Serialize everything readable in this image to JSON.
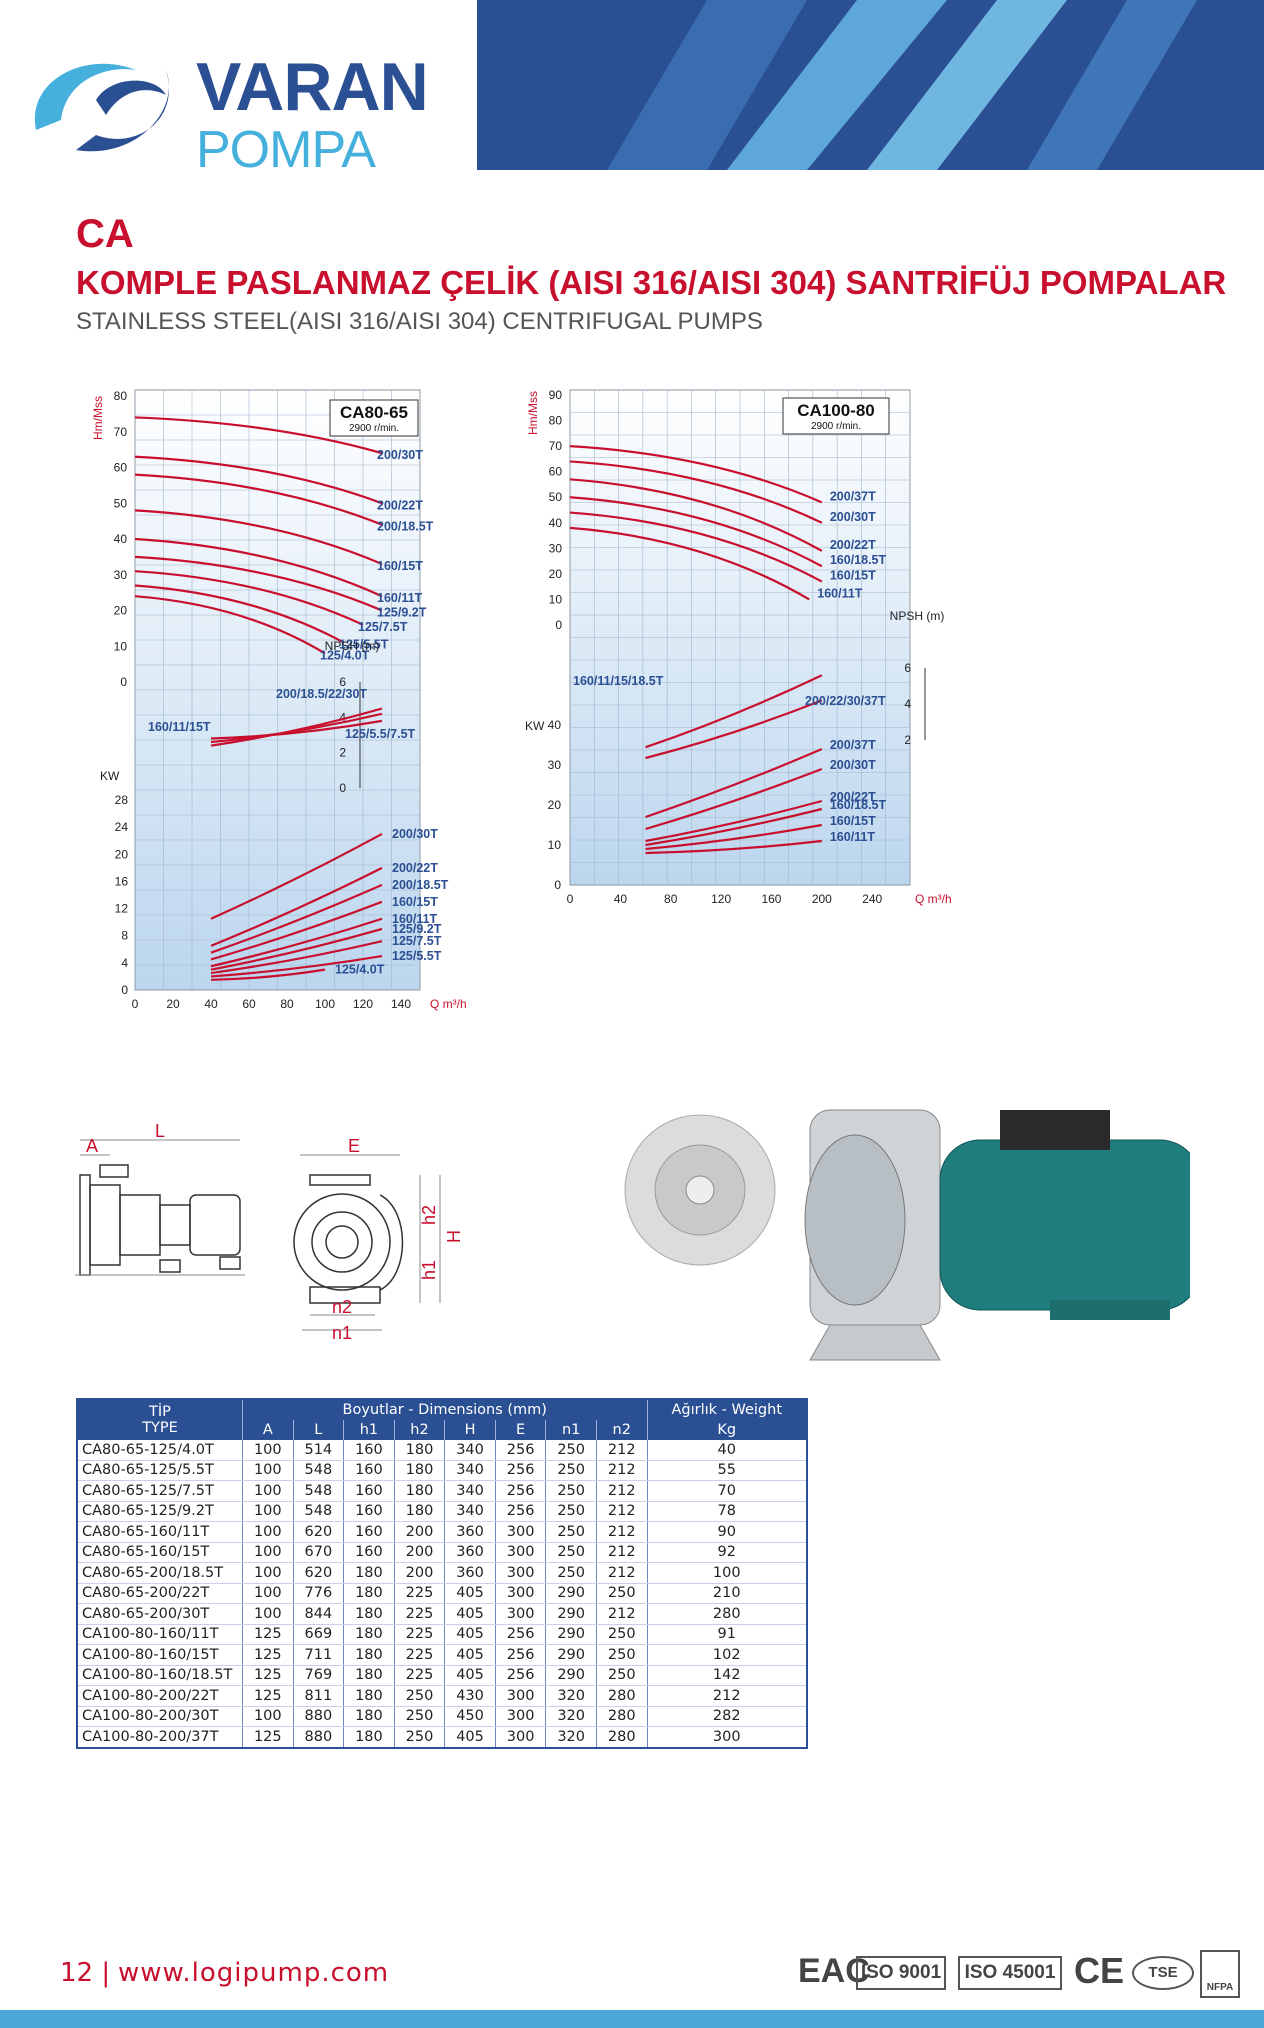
{
  "brand": {
    "line1": "VARAN",
    "line2": "POMPA"
  },
  "titles": {
    "code": "CA",
    "turkish": "KOMPLE PASLANMAZ ÇELİK (AISI 316/AISI 304) SANTRİFÜJ POMPALAR",
    "english": "STAINLESS STEEL(AISI 316/AISI 304) CENTRIFUGAL PUMPS"
  },
  "colors": {
    "brand_blue": "#2b4f93",
    "light_blue": "#45b0dc",
    "accent_red": "#c8102e"
  },
  "chart_data": [
    {
      "type": "line",
      "title": "CA80-65",
      "subtitle": "2900 r/min.",
      "xlabel": "Q m³/h",
      "ylabel": "Hm/Mss",
      "xlim": [
        0,
        150
      ],
      "x_ticks": [
        "0",
        "20",
        "40",
        "60",
        "80",
        "100",
        "120",
        "140"
      ],
      "head_ticks": [
        "0",
        "10",
        "20",
        "30",
        "40",
        "50",
        "60",
        "70",
        "80"
      ],
      "npsh_label": "NPSH (m)",
      "npsh_ticks": [
        "0",
        "2",
        "4",
        "6"
      ],
      "kw_label": "KW",
      "kw_ticks": [
        "0",
        "4",
        "8",
        "12",
        "16",
        "20",
        "24",
        "28"
      ],
      "head_series": [
        {
          "name": "200/30T",
          "x": [
            0,
            130
          ],
          "y": [
            74,
            64
          ]
        },
        {
          "name": "200/22T",
          "x": [
            0,
            130
          ],
          "y": [
            63,
            50
          ]
        },
        {
          "name": "200/18.5T",
          "x": [
            0,
            130
          ],
          "y": [
            58,
            44
          ]
        },
        {
          "name": "160/15T",
          "x": [
            0,
            130
          ],
          "y": [
            48,
            33
          ]
        },
        {
          "name": "160/11T",
          "x": [
            0,
            130
          ],
          "y": [
            40,
            24
          ]
        },
        {
          "name": "125/9.2T",
          "x": [
            0,
            130
          ],
          "y": [
            35,
            20
          ]
        },
        {
          "name": "125/7.5T",
          "x": [
            0,
            120
          ],
          "y": [
            31,
            16
          ]
        },
        {
          "name": "125/5.5T",
          "x": [
            0,
            110
          ],
          "y": [
            27,
            11
          ]
        },
        {
          "name": "125/4.0T",
          "x": [
            0,
            100
          ],
          "y": [
            24,
            8
          ]
        }
      ],
      "head_labels": [
        "200/30T",
        "200/22T",
        "200/18.5T",
        "160/15T",
        "160/11T",
        "125/9.2T",
        "125/7.5T",
        "125/5.5T",
        "125/4.0T"
      ],
      "npsh_series": [
        {
          "name": "200/18.5/22/30T",
          "x": [
            40,
            130
          ],
          "y": [
            2.4,
            4.5
          ]
        },
        {
          "name": "125/5.5/7.5T",
          "x": [
            40,
            130
          ],
          "y": [
            2.8,
            3.8
          ]
        },
        {
          "name": "160/11/15T",
          "x": [
            40,
            130
          ],
          "y": [
            2.6,
            4.2
          ]
        }
      ],
      "power_series": [
        {
          "name": "200/30T",
          "x": [
            40,
            130
          ],
          "y": [
            10.5,
            23
          ]
        },
        {
          "name": "200/22T",
          "x": [
            40,
            130
          ],
          "y": [
            6.5,
            18
          ]
        },
        {
          "name": "200/18.5T",
          "x": [
            40,
            130
          ],
          "y": [
            5.5,
            15.5
          ]
        },
        {
          "name": "160/15T",
          "x": [
            40,
            130
          ],
          "y": [
            4.5,
            13
          ]
        },
        {
          "name": "160/11T",
          "x": [
            40,
            130
          ],
          "y": [
            3.5,
            10.5
          ]
        },
        {
          "name": "125/9.2T",
          "x": [
            40,
            130
          ],
          "y": [
            3.0,
            9.0
          ]
        },
        {
          "name": "125/7.5T",
          "x": [
            40,
            130
          ],
          "y": [
            2.5,
            7.2
          ]
        },
        {
          "name": "125/5.5T",
          "x": [
            40,
            130
          ],
          "y": [
            2.0,
            5.0
          ]
        },
        {
          "name": "125/4.0T",
          "x": [
            40,
            100
          ],
          "y": [
            1.5,
            3.0
          ]
        }
      ]
    },
    {
      "type": "line",
      "title": "CA100-80",
      "subtitle": "2900 r/min.",
      "xlabel": "Q m³/h",
      "ylabel": "Hm/Mss",
      "xlim": [
        0,
        270
      ],
      "x_ticks": [
        "0",
        "40",
        "80",
        "120",
        "160",
        "200",
        "240"
      ],
      "head_ticks": [
        "0",
        "10",
        "20",
        "30",
        "40",
        "50",
        "60",
        "70",
        "80",
        "90"
      ],
      "npsh_label": "NPSH (m)",
      "npsh_ticks": [
        "2",
        "4",
        "6"
      ],
      "kw_label": "KW",
      "kw_ticks": [
        "0",
        "10",
        "20",
        "30",
        "40"
      ],
      "head_series": [
        {
          "name": "200/37T",
          "x": [
            0,
            200
          ],
          "y": [
            70,
            48
          ]
        },
        {
          "name": "200/30T",
          "x": [
            0,
            200
          ],
          "y": [
            64,
            40
          ]
        },
        {
          "name": "200/22T",
          "x": [
            0,
            200
          ],
          "y": [
            57,
            29
          ]
        },
        {
          "name": "160/18.5T",
          "x": [
            0,
            200
          ],
          "y": [
            50,
            23
          ]
        },
        {
          "name": "160/15T",
          "x": [
            0,
            200
          ],
          "y": [
            44,
            17
          ]
        },
        {
          "name": "160/11T",
          "x": [
            0,
            190
          ],
          "y": [
            38,
            10
          ]
        }
      ],
      "head_labels": [
        "200/37T",
        "200/30T",
        "200/22T",
        "160/18.5T",
        "160/15T",
        "160/11T"
      ],
      "npsh_series": [
        {
          "name": "160/11/15/18.5T",
          "x": [
            60,
            200
          ],
          "y": [
            1.6,
            5.6
          ]
        },
        {
          "name": "200/22/30/37T",
          "x": [
            60,
            200
          ],
          "y": [
            1.0,
            4.2
          ]
        }
      ],
      "power_series": [
        {
          "name": "200/37T",
          "x": [
            60,
            200
          ],
          "y": [
            17,
            34
          ]
        },
        {
          "name": "200/30T",
          "x": [
            60,
            200
          ],
          "y": [
            14,
            29
          ]
        },
        {
          "name": "200/22T",
          "x": [
            60,
            200
          ],
          "y": [
            11,
            21
          ]
        },
        {
          "name": "160/18.5T",
          "x": [
            60,
            200
          ],
          "y": [
            10,
            19
          ]
        },
        {
          "name": "160/15T",
          "x": [
            60,
            200
          ],
          "y": [
            9,
            15
          ]
        },
        {
          "name": "160/11T",
          "x": [
            60,
            200
          ],
          "y": [
            8,
            11
          ]
        }
      ]
    }
  ],
  "drawing": {
    "labels": {
      "A": "A",
      "L": "L",
      "E": "E",
      "h1": "h1",
      "h2": "h2",
      "H": "H",
      "n1": "n1",
      "n2": "n2"
    }
  },
  "table": {
    "type_header_tr": "TİP",
    "type_header_en": "TYPE",
    "dims_header": "Boyutlar -  Dimensions (mm)",
    "weight_header": "Ağırlık - Weight",
    "columns": [
      "A",
      "L",
      "h1",
      "h2",
      "H",
      "E",
      "n1",
      "n2"
    ],
    "weight_unit": "Kg",
    "rows": [
      [
        "CA80-65-125/4.0T",
        "100",
        "514",
        "160",
        "180",
        "340",
        "256",
        "250",
        "212",
        "40"
      ],
      [
        "CA80-65-125/5.5T",
        "100",
        "548",
        "160",
        "180",
        "340",
        "256",
        "250",
        "212",
        "55"
      ],
      [
        "CA80-65-125/7.5T",
        "100",
        "548",
        "160",
        "180",
        "340",
        "256",
        "250",
        "212",
        "70"
      ],
      [
        "CA80-65-125/9.2T",
        "100",
        "548",
        "160",
        "180",
        "340",
        "256",
        "250",
        "212",
        "78"
      ],
      [
        "CA80-65-160/11T",
        "100",
        "620",
        "160",
        "200",
        "360",
        "300",
        "250",
        "212",
        "90"
      ],
      [
        "CA80-65-160/15T",
        "100",
        "670",
        "160",
        "200",
        "360",
        "300",
        "250",
        "212",
        "92"
      ],
      [
        "CA80-65-200/18.5T",
        "100",
        "620",
        "180",
        "200",
        "360",
        "300",
        "250",
        "212",
        "100"
      ],
      [
        "CA80-65-200/22T",
        "100",
        "776",
        "180",
        "225",
        "405",
        "300",
        "290",
        "250",
        "210"
      ],
      [
        "CA80-65-200/30T",
        "100",
        "844",
        "180",
        "225",
        "405",
        "300",
        "290",
        "212",
        "280"
      ],
      [
        "CA100-80-160/11T",
        "125",
        "669",
        "180",
        "225",
        "405",
        "256",
        "290",
        "250",
        "91"
      ],
      [
        "CA100-80-160/15T",
        "125",
        "711",
        "180",
        "225",
        "405",
        "256",
        "290",
        "250",
        "102"
      ],
      [
        "CA100-80-160/18.5T",
        "125",
        "769",
        "180",
        "225",
        "405",
        "256",
        "290",
        "250",
        "142"
      ],
      [
        "CA100-80-200/22T",
        "125",
        "811",
        "180",
        "250",
        "430",
        "300",
        "320",
        "280",
        "212"
      ],
      [
        "CA100-80-200/30T",
        "100",
        "880",
        "180",
        "250",
        "450",
        "300",
        "320",
        "280",
        "282"
      ],
      [
        "CA100-80-200/37T",
        "125",
        "880",
        "180",
        "250",
        "405",
        "300",
        "320",
        "280",
        "300"
      ]
    ]
  },
  "footer": {
    "page_number": "12 |",
    "url": "www.logipump.com",
    "certs": [
      "EAC",
      "ISO 9001",
      "ISO 45001",
      "CE",
      "TSE",
      "NFPA"
    ]
  }
}
